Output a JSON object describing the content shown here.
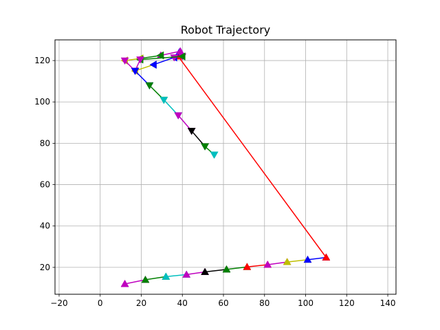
{
  "chart_data": {
    "type": "line",
    "title": "Robot Trajectory",
    "xlabel": "",
    "ylabel": "",
    "xlim": [
      -22,
      144
    ],
    "ylim": [
      7,
      130
    ],
    "xticks": [
      -20,
      0,
      20,
      40,
      60,
      80,
      100,
      120,
      140
    ],
    "yticks": [
      20,
      40,
      60,
      80,
      100,
      120
    ],
    "grid": true,
    "legend": "none",
    "colors": {
      "r": "#ff0000",
      "g": "#008000",
      "b": "#0000ff",
      "c": "#00bfbf",
      "m": "#bf00bf",
      "y": "#bfbf00",
      "k": "#000000"
    },
    "series": [
      {
        "color": "m",
        "marker": "triangle-up",
        "x": [
          12,
          12
        ],
        "y": [
          12,
          12
        ]
      },
      {
        "color": "m",
        "marker": "triangle-up",
        "x": [
          12,
          22
        ],
        "y": [
          12,
          14
        ]
      },
      {
        "color": "g",
        "marker": "triangle-up",
        "x": [
          22,
          32
        ],
        "y": [
          14,
          15.5
        ]
      },
      {
        "color": "c",
        "marker": "triangle-up",
        "x": [
          32,
          42
        ],
        "y": [
          15.5,
          16.5
        ]
      },
      {
        "color": "m",
        "marker": "triangle-up",
        "x": [
          42,
          51
        ],
        "y": [
          16.5,
          17.8
        ]
      },
      {
        "color": "k",
        "marker": "triangle-up",
        "x": [
          51,
          61.5
        ],
        "y": [
          17.8,
          19
        ]
      },
      {
        "color": "g",
        "marker": "triangle-up",
        "x": [
          61.5,
          71.5
        ],
        "y": [
          19,
          20.2
        ]
      },
      {
        "color": "r",
        "marker": "triangle-up",
        "x": [
          71.5,
          81.5
        ],
        "y": [
          20.2,
          21.3
        ]
      },
      {
        "color": "m",
        "marker": "triangle-up",
        "x": [
          81.5,
          91
        ],
        "y": [
          21.3,
          22.6
        ]
      },
      {
        "color": "y",
        "marker": "triangle-up",
        "x": [
          91,
          101
        ],
        "y": [
          22.6,
          23.7
        ]
      },
      {
        "color": "b",
        "marker": "triangle-up",
        "x": [
          101,
          110
        ],
        "y": [
          23.7,
          24.8
        ]
      },
      {
        "color": "r",
        "marker": "triangle-up",
        "x": [
          110,
          38
        ],
        "y": [
          24.8,
          122
        ]
      },
      {
        "color": "b",
        "marker": "triangle-up",
        "x": [
          38.5,
          39
        ],
        "y": [
          124,
          124.5
        ]
      },
      {
        "color": "m",
        "marker": "triangle-up",
        "x": [
          39,
          29.5
        ],
        "y": [
          124.5,
          122.5
        ]
      },
      {
        "color": "g",
        "marker": "triangle-left",
        "x": [
          29.5,
          19.5
        ],
        "y": [
          122.5,
          121
        ]
      },
      {
        "color": "y",
        "marker": "triangle-left",
        "x": [
          19.5,
          12
        ],
        "y": [
          121,
          120
        ]
      },
      {
        "color": "m",
        "marker": "triangle-down",
        "x": [
          12,
          17
        ],
        "y": [
          120,
          115
        ]
      },
      {
        "color": "y",
        "marker": "triangle-left",
        "x": [
          17,
          26
        ],
        "y": [
          115,
          118
        ]
      },
      {
        "color": "b",
        "marker": "triangle-left",
        "x": [
          26,
          36
        ],
        "y": [
          118,
          121.5
        ]
      },
      {
        "color": "m",
        "marker": "triangle-down",
        "x": [
          36,
          40
        ],
        "y": [
          121.5,
          122
        ]
      },
      {
        "color": "g",
        "marker": "triangle-left",
        "x": [
          40,
          19.5
        ],
        "y": [
          122,
          120.5
        ]
      },
      {
        "color": "m",
        "marker": "triangle-down",
        "x": [
          19.5,
          17
        ],
        "y": [
          120.5,
          115
        ]
      },
      {
        "color": "b",
        "marker": "triangle-down",
        "x": [
          17,
          24
        ],
        "y": [
          115,
          108
        ]
      },
      {
        "color": "g",
        "marker": "triangle-down",
        "x": [
          24,
          31
        ],
        "y": [
          108,
          101
        ]
      },
      {
        "color": "c",
        "marker": "triangle-down",
        "x": [
          31,
          38
        ],
        "y": [
          101,
          93.5
        ]
      },
      {
        "color": "m",
        "marker": "triangle-down",
        "x": [
          38,
          44.5
        ],
        "y": [
          93.5,
          86
        ]
      },
      {
        "color": "k",
        "marker": "triangle-down",
        "x": [
          44.5,
          51
        ],
        "y": [
          86,
          78.5
        ]
      },
      {
        "color": "g",
        "marker": "triangle-down",
        "x": [
          51,
          55.5
        ],
        "y": [
          78.5,
          74.5
        ]
      },
      {
        "color": "c",
        "marker": "triangle-down",
        "x": [
          55.5,
          55.5
        ],
        "y": [
          74.5,
          74.5
        ]
      }
    ]
  }
}
